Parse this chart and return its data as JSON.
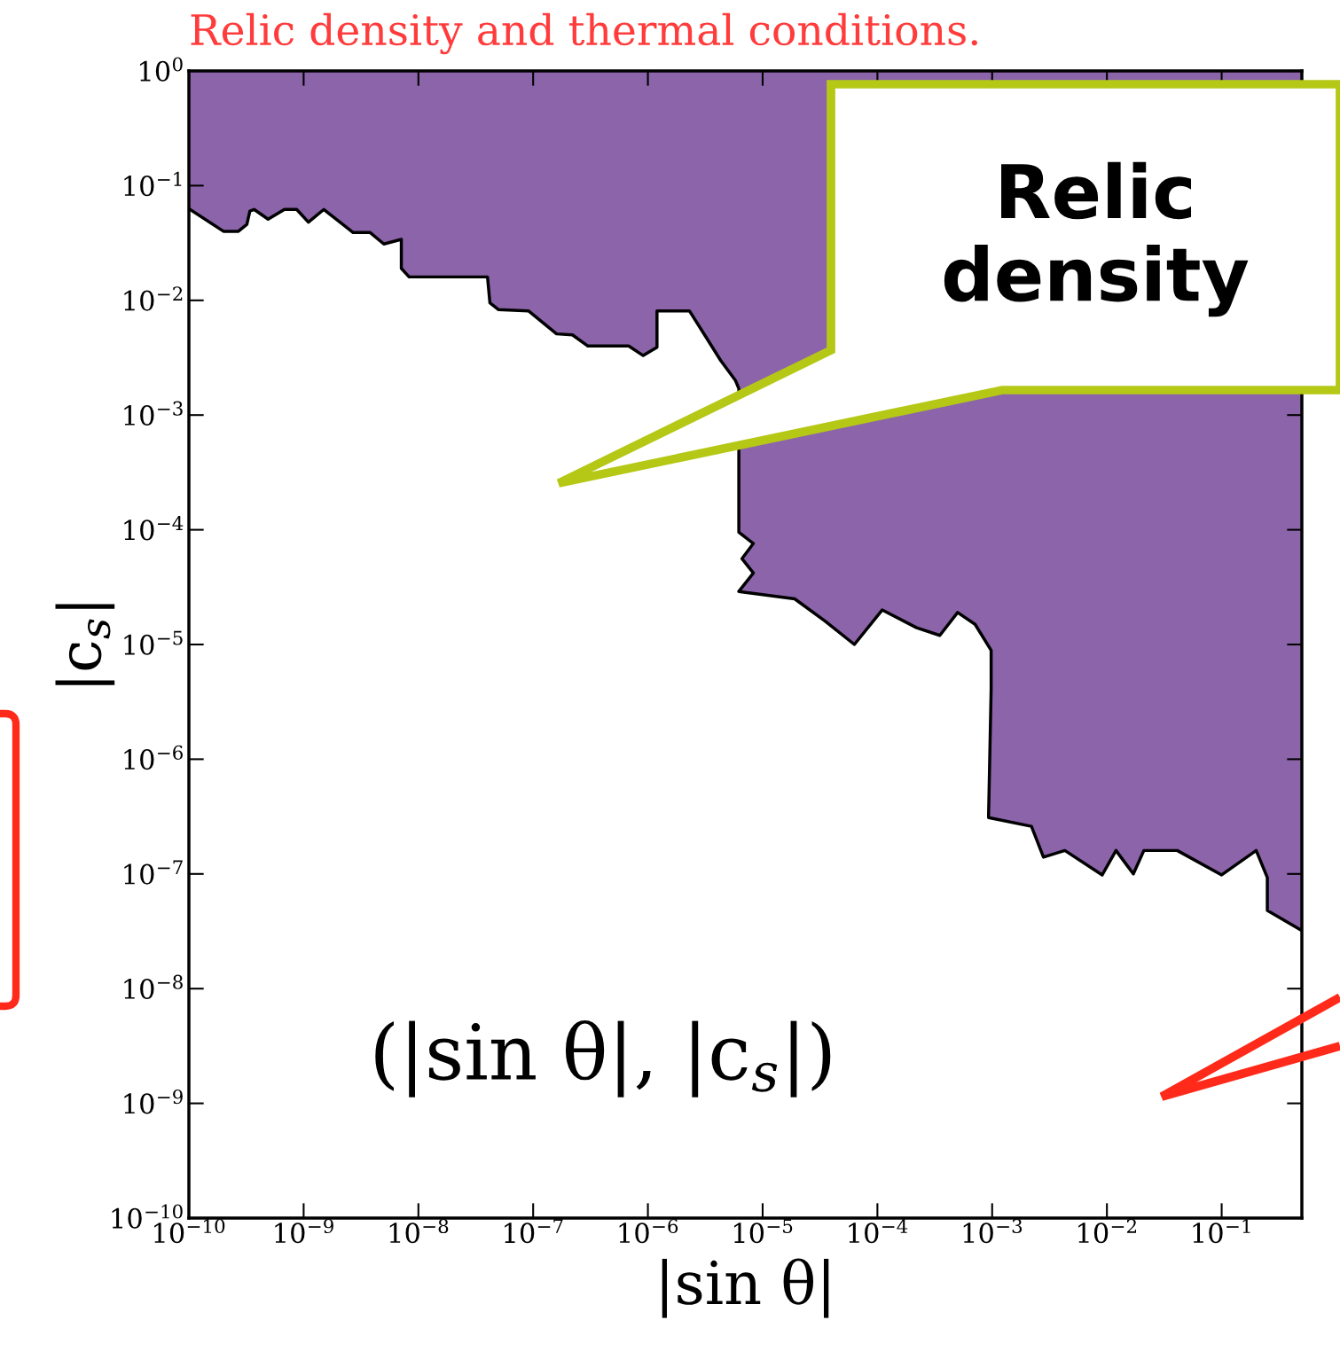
{
  "chart_data": {
    "type": "line",
    "title": "Relic density and thermal conditions.",
    "xlabel": "|sin θ|",
    "ylabel": "|c$_{s}$|",
    "annotations": [
      "Relic\ndensity",
      "(|sin θ|, |c$_{s}$|)"
    ],
    "log": "xy",
    "xlim": [
      1e-10,
      0.5
    ],
    "ylim": [
      1e-10,
      1
    ],
    "xticks": [
      {
        "value": 1e-10,
        "label": "10$^{−10}$"
      },
      {
        "value": 1e-09,
        "label": "10$^{−9}$"
      },
      {
        "value": 1e-08,
        "label": "10$^{−8}$"
      },
      {
        "value": 1e-07,
        "label": "10$^{−7}$"
      },
      {
        "value": 1e-06,
        "label": "10$^{−6}$"
      },
      {
        "value": 1e-05,
        "label": "10$^{−5}$"
      },
      {
        "value": 0.0001,
        "label": "10$^{−4}$"
      },
      {
        "value": 0.001,
        "label": "10$^{−3}$"
      },
      {
        "value": 0.01,
        "label": "10$^{−2}$"
      },
      {
        "value": 0.1,
        "label": "10$^{−1}$"
      }
    ],
    "yticks": [
      {
        "value": 1e-10,
        "label": "10$^{−10}$"
      },
      {
        "value": 1e-09,
        "label": "10$^{−9}$"
      },
      {
        "value": 1e-08,
        "label": "10$^{−8}$"
      },
      {
        "value": 1e-07,
        "label": "10$^{−7}$"
      },
      {
        "value": 1e-06,
        "label": "10$^{−6}$"
      },
      {
        "value": 1e-05,
        "label": "10$^{−5}$"
      },
      {
        "value": 0.0001,
        "label": "10$^{−4}$"
      },
      {
        "value": 0.001,
        "label": "10$^{−3}$"
      },
      {
        "value": 0.01,
        "label": "10$^{−2}$"
      },
      {
        "value": 0.1,
        "label": "10$^{−1}$"
      },
      {
        "value": 1,
        "label": "10$^{0}$"
      }
    ],
    "series": [
      {
        "color": "#000000",
        "x": [
          1e-10,
          2e-10,
          2.7e-10,
          3.2e-10,
          3.4e-10,
          3.7e-10,
          4.9e-10,
          6.8e-10,
          8.7e-10,
          1.1e-09,
          1.5e-09,
          2.7e-09,
          3.8e-09,
          5e-09,
          7.1e-09,
          7.1e-09,
          8.3e-09,
          1.2e-08,
          4e-08,
          4.2e-08,
          5e-08,
          9.1e-08,
          1.6e-07,
          2.2e-07,
          3e-07,
          6.8e-07,
          9.1e-07,
          1.2e-06,
          1.2e-06,
          2.3e-06,
          3.2e-06,
          4.3e-06,
          5.8e-06,
          6.2e-06,
          6.2e-06,
          8.3e-06,
          6.6e-06,
          8.3e-06,
          6.2e-06,
          1.9e-05,
          3.5e-05,
          6.3e-05,
          0.00011,
          0.00022,
          0.00035,
          0.0005,
          0.00071,
          0.00098,
          0.00098,
          0.00093,
          0.0022,
          0.0028,
          0.0043,
          0.0091,
          0.012,
          0.017,
          0.021,
          0.041,
          0.1,
          0.2,
          0.25,
          0.25,
          0.5
        ],
        "values": [
          0.063,
          0.04,
          0.04,
          0.046,
          0.06,
          0.062,
          0.051,
          0.062,
          0.062,
          0.048,
          0.062,
          0.039,
          0.039,
          0.031,
          0.034,
          0.019,
          0.016,
          0.016,
          0.016,
          0.0095,
          0.0083,
          0.0081,
          0.0051,
          0.005,
          0.004,
          0.004,
          0.0033,
          0.0039,
          0.0081,
          0.0081,
          0.0048,
          0.003,
          0.002,
          0.0017,
          9.5e-05,
          7.6e-05,
          5.6e-05,
          4.2e-05,
          2.9e-05,
          2.5e-05,
          1.6e-05,
          1e-05,
          2e-05,
          1.4e-05,
          1.2e-05,
          1.9e-05,
          1.5e-05,
          8.9e-06,
          4.1e-06,
          3.1e-07,
          2.6e-07,
          1.4e-07,
          1.6e-07,
          9.8e-08,
          1.6e-07,
          1e-07,
          1.6e-07,
          1.6e-07,
          9.8e-08,
          1.6e-07,
          9.3e-08,
          4.8e-08,
          3.2e-08
        ],
        "lower": [
          0.063,
          0.04,
          0.04,
          0.046,
          0.06,
          0.062,
          0.051,
          0.062,
          0.062,
          0.048,
          0.062,
          0.039,
          0.039,
          0.031,
          0.034,
          0.019,
          0.016,
          0.016,
          0.016,
          0.0095,
          0.0083,
          0.0081,
          0.0051,
          0.005,
          0.004,
          0.004,
          0.0033,
          0.0039,
          0.0081,
          0.0081,
          0.0048,
          0.003,
          0.002,
          0.0017,
          9.5e-05,
          7.6e-05,
          5.6e-05,
          4.2e-05,
          2.9e-05,
          2.5e-05,
          1.6e-05,
          1e-05,
          2e-05,
          1.4e-05,
          1.2e-05,
          1.9e-05,
          1.5e-05,
          8.9e-06,
          4.1e-06,
          3.1e-07,
          2.6e-07,
          1.4e-07,
          1.6e-07,
          9.8e-08,
          1.6e-07,
          1e-07,
          1.6e-07,
          1.6e-07,
          9.8e-08,
          1.6e-07,
          9.3e-08,
          4.8e-08,
          3.2e-08
        ],
        "upper": [
          1,
          1,
          1,
          1,
          1,
          1,
          1,
          1,
          1,
          1,
          1,
          1,
          1,
          1,
          1,
          1,
          1,
          1,
          1,
          1,
          1,
          1,
          1,
          1,
          1,
          1,
          1,
          1,
          1,
          1,
          1,
          1,
          1,
          1,
          1,
          1,
          1,
          1,
          1,
          1,
          1,
          1,
          1,
          1,
          1,
          1,
          1,
          1,
          1,
          1,
          1,
          1,
          1,
          1,
          1,
          1,
          1,
          1,
          1,
          1,
          1,
          1,
          1
        ]
      }
    ]
  }
}
